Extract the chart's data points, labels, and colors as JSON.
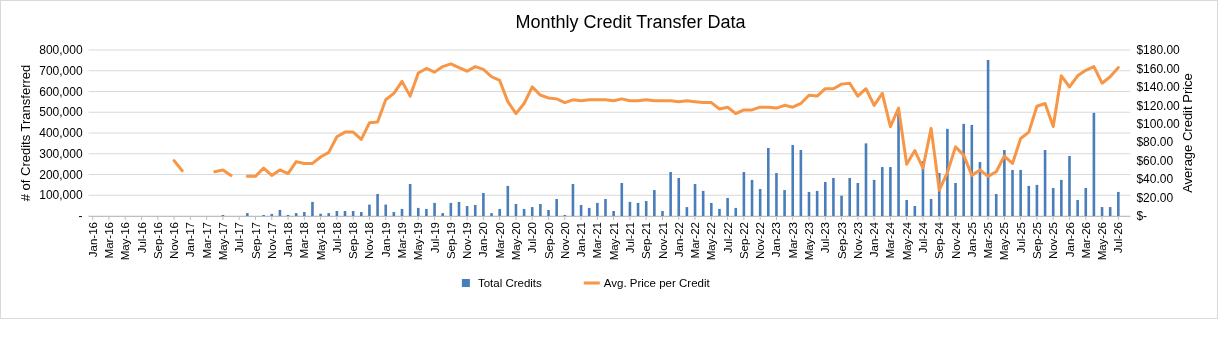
{
  "chart_data": {
    "type": "bar",
    "title": "Monthly Credit Transfer Data",
    "ylabel": "# of Credits Transferred",
    "y2label": "Average Credit Price",
    "categories": [
      "Jan-16",
      null,
      "Mar-16",
      null,
      "May-16",
      null,
      "Jul-16",
      null,
      "Sep-16",
      null,
      "Nov-16",
      null,
      "Jan-17",
      null,
      "Mar-17",
      null,
      "May-17",
      null,
      "Jul-17",
      null,
      "Sep-17",
      null,
      "Nov-17",
      null,
      "Jan-18",
      null,
      "Mar-18",
      null,
      "May-18",
      null,
      "Jul-18",
      null,
      "Sep-18",
      null,
      "Nov-18",
      null,
      "Jan-19",
      null,
      "Mar-19",
      null,
      "May-19",
      null,
      "Jul-19",
      null,
      "Sep-19",
      null,
      "Nov-19",
      null,
      "Jan-20",
      null,
      "Mar-20",
      null,
      "May-20",
      null,
      "Jul-20",
      null,
      "Sep-20",
      null,
      "Nov-20",
      null,
      "Jan-21",
      null,
      "Mar-21",
      null,
      "May-21",
      null,
      "Jul-21",
      null,
      "Sep-21",
      null,
      "Nov-21",
      null,
      "Jan-22",
      null,
      "Mar-22",
      null,
      "May-22",
      null,
      "Jul-22",
      null,
      "Sep-22",
      null,
      "Nov-22",
      null,
      "Jan-23",
      null,
      "Mar-23",
      null,
      "May-23",
      null,
      "Jul-23",
      null,
      "Sep-23",
      null,
      "Nov-23",
      null,
      "Jan-24",
      null,
      "Mar-24",
      null,
      "May-24",
      null,
      "Jul-24",
      null,
      "Sep-24",
      null,
      "Nov-24",
      null,
      "Jan-25",
      null,
      "Mar-25",
      null,
      "May-25",
      null,
      "Jul-25",
      null,
      "Sep-25",
      null,
      "Nov-25",
      null,
      "Jan-26",
      null,
      "Mar-26",
      null,
      "May-26",
      null,
      "Jul-26"
    ],
    "series": [
      {
        "name": "Total Credits",
        "color": "#4a7ebb",
        "values": [
          null,
          null,
          null,
          null,
          null,
          null,
          null,
          null,
          null,
          null,
          null,
          null,
          null,
          null,
          null,
          null,
          5000,
          null,
          null,
          14000,
          null,
          5000,
          10000,
          29000,
          5000,
          14000,
          19000,
          68000,
          11000,
          14000,
          24000,
          24000,
          24000,
          19000,
          55000,
          106000,
          55000,
          19000,
          34000,
          154000,
          39000,
          34000,
          63000,
          14000,
          63000,
          68000,
          48000,
          53000,
          111000,
          14000,
          34000,
          145000,
          58000,
          34000,
          43000,
          58000,
          29000,
          82000,
          5000,
          154000,
          53000,
          39000,
          63000,
          82000,
          24000,
          159000,
          68000,
          63000,
          72000,
          125000,
          24000,
          212000,
          183000,
          43000,
          154000,
          121000,
          63000,
          34000,
          87000,
          39000,
          212000,
          174000,
          130000,
          328000,
          207000,
          125000,
          342000,
          318000,
          116000,
          121000,
          164000,
          183000,
          98000,
          183000,
          159000,
          350000,
          174000,
          236000,
          236000,
          498000,
          77000,
          48000,
          265000,
          82000,
          207000,
          420000,
          159000,
          444000,
          439000,
          260000,
          752000,
          106000,
          318000,
          222000,
          222000,
          145000,
          150000,
          318000,
          135000,
          174000,
          289000,
          77000,
          135000,
          497000,
          43000,
          43000,
          116000
        ]
      },
      {
        "name": "Avg. Price per Credit",
        "type": "line",
        "axis": "y2",
        "color": "#f79646",
        "values": [
          null,
          null,
          null,
          null,
          null,
          null,
          null,
          null,
          null,
          null,
          60,
          49,
          null,
          null,
          null,
          48,
          50,
          44,
          null,
          43,
          43,
          52,
          44,
          50,
          46,
          59,
          57,
          57,
          64,
          69,
          86,
          91,
          91,
          83,
          101,
          102,
          126,
          133,
          146,
          130,
          155,
          160,
          156,
          162,
          165,
          161,
          157,
          162,
          159,
          151,
          147,
          124,
          111,
          122,
          140,
          131,
          128,
          127,
          123,
          126,
          125,
          126,
          126,
          126,
          125,
          127,
          125,
          125,
          126,
          125,
          125,
          125,
          124,
          125,
          124,
          123,
          123,
          116,
          118,
          111,
          115,
          115,
          118,
          118,
          117,
          120,
          118,
          122,
          131,
          130,
          138,
          138,
          143,
          144,
          130,
          138,
          120,
          133,
          97,
          117,
          56,
          71,
          52,
          95,
          28,
          47,
          75,
          66,
          44,
          50,
          43,
          48,
          65,
          57,
          84,
          91,
          119,
          122,
          97,
          152,
          140,
          152,
          158,
          162,
          144,
          151,
          161
        ]
      }
    ],
    "ylim": [
      0,
      800000
    ],
    "yticks": [
      {
        "value": 0,
        "label": "-"
      },
      {
        "value": 100000,
        "label": "100,000"
      },
      {
        "value": 200000,
        "label": "200,000"
      },
      {
        "value": 300000,
        "label": "300,000"
      },
      {
        "value": 400000,
        "label": "400,000"
      },
      {
        "value": 500000,
        "label": "500,000"
      },
      {
        "value": 600000,
        "label": "600,000"
      },
      {
        "value": 700000,
        "label": "700,000"
      },
      {
        "value": 800000,
        "label": "800,000"
      }
    ],
    "y2lim": [
      0,
      180
    ],
    "y2ticks": [
      {
        "value": 0,
        "label": "$-"
      },
      {
        "value": 20,
        "label": "$20.00"
      },
      {
        "value": 40,
        "label": "$40.00"
      },
      {
        "value": 60,
        "label": "$60.00"
      },
      {
        "value": 80,
        "label": "$80.00"
      },
      {
        "value": 100,
        "label": "$100.00"
      },
      {
        "value": 120,
        "label": "$120.00"
      },
      {
        "value": 140,
        "label": "$140.00"
      },
      {
        "value": 160,
        "label": "$160.00"
      },
      {
        "value": 180,
        "label": "$180.00"
      }
    ],
    "grid": "y",
    "legend": "bottom"
  }
}
